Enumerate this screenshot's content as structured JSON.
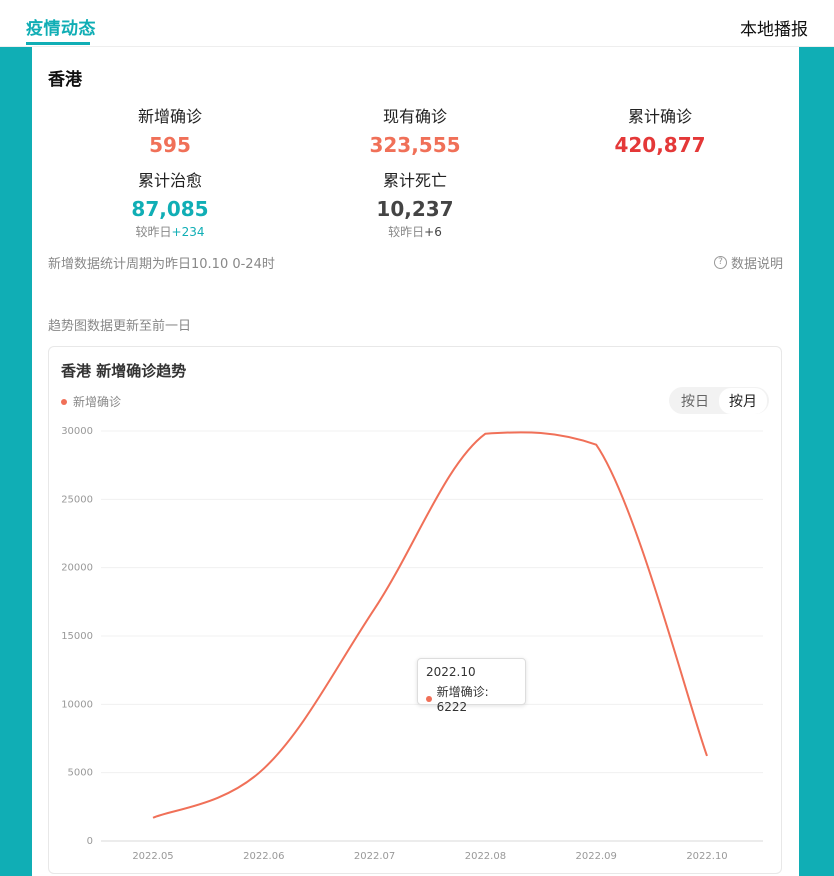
{
  "header": {
    "active_tab": "疫情动态",
    "right_tab": "本地播报"
  },
  "region": "香港",
  "stats": {
    "new_confirmed": {
      "label": "新增确诊",
      "value": "595"
    },
    "current_confirmed": {
      "label": "现有确诊",
      "value": "323,555"
    },
    "total_confirmed": {
      "label": "累计确诊",
      "value": "420,877"
    },
    "total_cured": {
      "label": "累计治愈",
      "value": "87,085",
      "delta_prefix": "较昨日",
      "delta": "+234"
    },
    "total_deaths": {
      "label": "累计死亡",
      "value": "10,237",
      "delta_prefix": "较昨日",
      "delta": "+6"
    }
  },
  "note": "新增数据统计周期为昨日10.10 0-24时",
  "data_explain": "数据说明",
  "trend_note": "趋势图数据更新至前一日",
  "chart": {
    "title": "香港 新增确诊趋势",
    "legend": "新增确诊",
    "toggle_day": "按日",
    "toggle_month": "按月",
    "tooltip_date": "2022.10",
    "tooltip_label": "新增确诊: 6222"
  },
  "colors": {
    "accent": "#10aeb5",
    "line": "#f07058",
    "total": "#e43838"
  },
  "chart_data": {
    "type": "line",
    "categories": [
      "2022.05",
      "2022.06",
      "2022.07",
      "2022.08",
      "2022.09",
      "2022.10"
    ],
    "series": [
      {
        "name": "新增确诊",
        "values": [
          1700,
          5300,
          17000,
          29800,
          29000,
          6222
        ]
      }
    ],
    "ylim": [
      0,
      30000
    ],
    "yticks": [
      0,
      5000,
      10000,
      15000,
      20000,
      25000,
      30000
    ],
    "grid": true,
    "legend_position": "top-left"
  }
}
